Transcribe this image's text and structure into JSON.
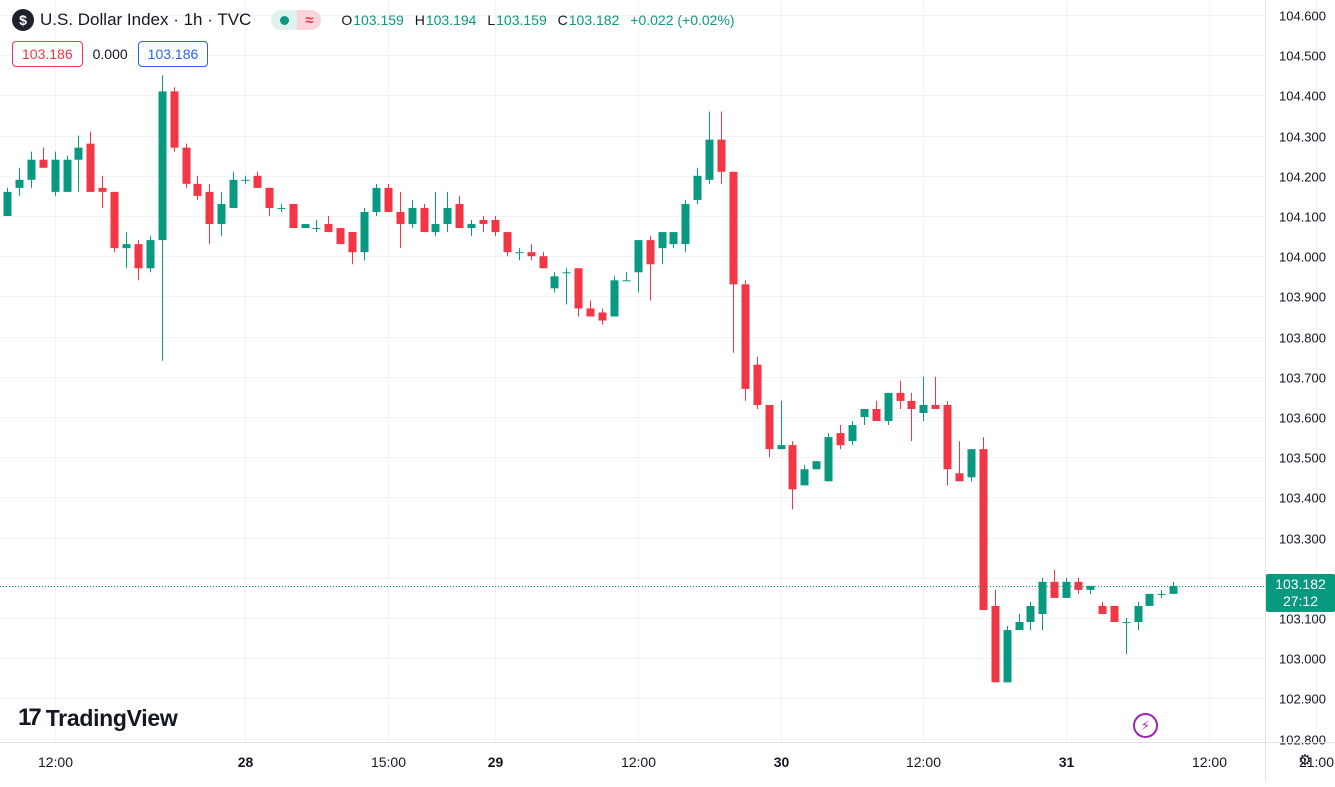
{
  "header": {
    "symbol_icon": "dollar-sign-icon",
    "symbol_glyph": "$",
    "title": "U.S. Dollar Index · 1h · TVC",
    "status_glyph": "≈",
    "ohlc": {
      "o": "103.159",
      "h": "103.194",
      "l": "103.159",
      "c": "103.182",
      "change": "+0.022 (+0.02%)"
    }
  },
  "quote": {
    "bid": "103.186",
    "spread": "0.000",
    "ask": "103.186"
  },
  "last_price": {
    "value": "103.182",
    "countdown": "27:12"
  },
  "logo_text": "TradingView",
  "logo_mark": "17",
  "colors": {
    "up": "#089981",
    "down": "#f23645",
    "grid": "#f0f3fa"
  },
  "chart_data": {
    "type": "candlestick",
    "ylim": [
      102.78,
      104.62
    ],
    "grid": true,
    "y_ticks": [
      "104.600",
      "104.500",
      "104.400",
      "104.300",
      "104.200",
      "104.100",
      "104.000",
      "103.900",
      "103.800",
      "103.700",
      "103.600",
      "103.500",
      "103.400",
      "103.300",
      "103.200",
      "103.100",
      "103.000",
      "102.900",
      "102.800"
    ],
    "y_tick_values": [
      104.6,
      104.5,
      104.4,
      104.3,
      104.2,
      104.1,
      104.0,
      103.9,
      103.8,
      103.7,
      103.6,
      103.5,
      103.4,
      103.3,
      103.2,
      103.1,
      103.0,
      102.9,
      102.8
    ],
    "x_ticks": [
      {
        "label": "12:00",
        "bar": 4,
        "bold": false
      },
      {
        "label": "28",
        "bar": 20,
        "bold": true
      },
      {
        "label": "15:00",
        "bar": 32,
        "bold": false
      },
      {
        "label": "29",
        "bar": 41,
        "bold": true
      },
      {
        "label": "12:00",
        "bar": 53,
        "bold": false
      },
      {
        "label": "30",
        "bar": 65,
        "bold": true
      },
      {
        "label": "12:00",
        "bar": 77,
        "bold": false
      },
      {
        "label": "31",
        "bar": 89,
        "bold": true
      },
      {
        "label": "12:00",
        "bar": 101,
        "bold": false
      },
      {
        "label": "21:00",
        "bar": 110,
        "bold": false
      }
    ],
    "candles": [
      {
        "o": 104.1,
        "h": 104.17,
        "l": 104.1,
        "c": 104.16
      },
      {
        "o": 104.17,
        "h": 104.22,
        "l": 104.15,
        "c": 104.19
      },
      {
        "o": 104.19,
        "h": 104.26,
        "l": 104.17,
        "c": 104.24
      },
      {
        "o": 104.24,
        "h": 104.27,
        "l": 104.22,
        "c": 104.22
      },
      {
        "o": 104.16,
        "h": 104.26,
        "l": 104.15,
        "c": 104.24
      },
      {
        "o": 104.16,
        "h": 104.25,
        "l": 104.16,
        "c": 104.24
      },
      {
        "o": 104.24,
        "h": 104.3,
        "l": 104.16,
        "c": 104.27
      },
      {
        "o": 104.28,
        "h": 104.31,
        "l": 104.16,
        "c": 104.16
      },
      {
        "o": 104.17,
        "h": 104.2,
        "l": 104.12,
        "c": 104.16
      },
      {
        "o": 104.16,
        "h": 104.16,
        "l": 104.01,
        "c": 104.02
      },
      {
        "o": 104.02,
        "h": 104.06,
        "l": 103.97,
        "c": 104.03
      },
      {
        "o": 104.03,
        "h": 104.04,
        "l": 103.94,
        "c": 103.97
      },
      {
        "o": 103.97,
        "h": 104.05,
        "l": 103.96,
        "c": 104.04
      },
      {
        "o": 104.04,
        "h": 104.45,
        "l": 103.74,
        "c": 104.41
      },
      {
        "o": 104.41,
        "h": 104.42,
        "l": 104.26,
        "c": 104.27
      },
      {
        "o": 104.27,
        "h": 104.28,
        "l": 104.17,
        "c": 104.18
      },
      {
        "o": 104.18,
        "h": 104.2,
        "l": 104.14,
        "c": 104.15
      },
      {
        "o": 104.16,
        "h": 104.18,
        "l": 104.03,
        "c": 104.08
      },
      {
        "o": 104.08,
        "h": 104.16,
        "l": 104.05,
        "c": 104.13
      },
      {
        "o": 104.12,
        "h": 104.21,
        "l": 104.12,
        "c": 104.19
      },
      {
        "o": 104.19,
        "h": 104.2,
        "l": 104.18,
        "c": 104.19
      },
      {
        "o": 104.2,
        "h": 104.21,
        "l": 104.17,
        "c": 104.17
      },
      {
        "o": 104.17,
        "h": 104.17,
        "l": 104.1,
        "c": 104.12
      },
      {
        "o": 104.12,
        "h": 104.13,
        "l": 104.11,
        "c": 104.12
      },
      {
        "o": 104.13,
        "h": 104.13,
        "l": 104.07,
        "c": 104.07
      },
      {
        "o": 104.07,
        "h": 104.08,
        "l": 104.07,
        "c": 104.08
      },
      {
        "o": 104.07,
        "h": 104.09,
        "l": 104.06,
        "c": 104.07
      },
      {
        "o": 104.08,
        "h": 104.1,
        "l": 104.06,
        "c": 104.06
      },
      {
        "o": 104.07,
        "h": 104.07,
        "l": 104.03,
        "c": 104.03
      },
      {
        "o": 104.06,
        "h": 104.06,
        "l": 103.98,
        "c": 104.01
      },
      {
        "o": 104.01,
        "h": 104.12,
        "l": 103.99,
        "c": 104.11
      },
      {
        "o": 104.11,
        "h": 104.18,
        "l": 104.1,
        "c": 104.17
      },
      {
        "o": 104.17,
        "h": 104.18,
        "l": 104.12,
        "c": 104.11
      },
      {
        "o": 104.11,
        "h": 104.16,
        "l": 104.02,
        "c": 104.08
      },
      {
        "o": 104.08,
        "h": 104.14,
        "l": 104.07,
        "c": 104.12
      },
      {
        "o": 104.12,
        "h": 104.13,
        "l": 104.06,
        "c": 104.06
      },
      {
        "o": 104.06,
        "h": 104.16,
        "l": 104.05,
        "c": 104.08
      },
      {
        "o": 104.08,
        "h": 104.16,
        "l": 104.06,
        "c": 104.12
      },
      {
        "o": 104.13,
        "h": 104.15,
        "l": 104.07,
        "c": 104.07
      },
      {
        "o": 104.07,
        "h": 104.09,
        "l": 104.05,
        "c": 104.08
      },
      {
        "o": 104.09,
        "h": 104.1,
        "l": 104.06,
        "c": 104.08
      },
      {
        "o": 104.09,
        "h": 104.1,
        "l": 104.05,
        "c": 104.06
      },
      {
        "o": 104.06,
        "h": 104.06,
        "l": 104.0,
        "c": 104.01
      },
      {
        "o": 104.01,
        "h": 104.02,
        "l": 103.99,
        "c": 104.01
      },
      {
        "o": 104.01,
        "h": 104.03,
        "l": 103.99,
        "c": 104.0
      },
      {
        "o": 104.0,
        "h": 104.01,
        "l": 103.97,
        "c": 103.97
      },
      {
        "o": 103.92,
        "h": 103.96,
        "l": 103.91,
        "c": 103.95
      },
      {
        "o": 103.96,
        "h": 103.97,
        "l": 103.88,
        "c": 103.96
      },
      {
        "o": 103.97,
        "h": 103.97,
        "l": 103.85,
        "c": 103.87
      },
      {
        "o": 103.87,
        "h": 103.89,
        "l": 103.85,
        "c": 103.85
      },
      {
        "o": 103.86,
        "h": 103.87,
        "l": 103.83,
        "c": 103.84
      },
      {
        "o": 103.85,
        "h": 103.95,
        "l": 103.85,
        "c": 103.94
      },
      {
        "o": 103.94,
        "h": 103.96,
        "l": 103.94,
        "c": 103.94
      },
      {
        "o": 103.96,
        "h": 104.04,
        "l": 103.91,
        "c": 104.04
      },
      {
        "o": 104.04,
        "h": 104.05,
        "l": 103.89,
        "c": 103.98
      },
      {
        "o": 104.02,
        "h": 104.06,
        "l": 103.98,
        "c": 104.06
      },
      {
        "o": 104.03,
        "h": 104.06,
        "l": 104.02,
        "c": 104.06
      },
      {
        "o": 104.03,
        "h": 104.14,
        "l": 104.01,
        "c": 104.13
      },
      {
        "o": 104.14,
        "h": 104.22,
        "l": 104.13,
        "c": 104.2
      },
      {
        "o": 104.19,
        "h": 104.36,
        "l": 104.18,
        "c": 104.29
      },
      {
        "o": 104.29,
        "h": 104.36,
        "l": 104.18,
        "c": 104.21
      },
      {
        "o": 104.21,
        "h": 104.21,
        "l": 103.76,
        "c": 103.93
      },
      {
        "o": 103.93,
        "h": 103.94,
        "l": 103.64,
        "c": 103.67
      },
      {
        "o": 103.73,
        "h": 103.75,
        "l": 103.62,
        "c": 103.63
      },
      {
        "o": 103.63,
        "h": 103.63,
        "l": 103.5,
        "c": 103.52
      },
      {
        "o": 103.52,
        "h": 103.64,
        "l": 103.52,
        "c": 103.53
      },
      {
        "o": 103.53,
        "h": 103.54,
        "l": 103.37,
        "c": 103.42
      },
      {
        "o": 103.43,
        "h": 103.48,
        "l": 103.43,
        "c": 103.47
      },
      {
        "o": 103.47,
        "h": 103.49,
        "l": 103.47,
        "c": 103.49
      },
      {
        "o": 103.44,
        "h": 103.56,
        "l": 103.44,
        "c": 103.55
      },
      {
        "o": 103.56,
        "h": 103.58,
        "l": 103.52,
        "c": 103.53
      },
      {
        "o": 103.54,
        "h": 103.59,
        "l": 103.53,
        "c": 103.58
      },
      {
        "o": 103.6,
        "h": 103.62,
        "l": 103.58,
        "c": 103.62
      },
      {
        "o": 103.62,
        "h": 103.64,
        "l": 103.59,
        "c": 103.59
      },
      {
        "o": 103.59,
        "h": 103.66,
        "l": 103.58,
        "c": 103.66
      },
      {
        "o": 103.66,
        "h": 103.69,
        "l": 103.62,
        "c": 103.64
      },
      {
        "o": 103.64,
        "h": 103.66,
        "l": 103.54,
        "c": 103.62
      },
      {
        "o": 103.61,
        "h": 103.7,
        "l": 103.59,
        "c": 103.63
      },
      {
        "o": 103.63,
        "h": 103.7,
        "l": 103.62,
        "c": 103.62
      },
      {
        "o": 103.63,
        "h": 103.64,
        "l": 103.43,
        "c": 103.47
      },
      {
        "o": 103.46,
        "h": 103.54,
        "l": 103.44,
        "c": 103.44
      },
      {
        "o": 103.45,
        "h": 103.52,
        "l": 103.44,
        "c": 103.52
      },
      {
        "o": 103.52,
        "h": 103.55,
        "l": 103.12,
        "c": 103.12
      },
      {
        "o": 103.13,
        "h": 103.17,
        "l": 102.94,
        "c": 102.94
      },
      {
        "o": 102.94,
        "h": 103.08,
        "l": 102.94,
        "c": 103.07
      },
      {
        "o": 103.07,
        "h": 103.11,
        "l": 103.07,
        "c": 103.09
      },
      {
        "o": 103.09,
        "h": 103.14,
        "l": 103.07,
        "c": 103.13
      },
      {
        "o": 103.11,
        "h": 103.2,
        "l": 103.07,
        "c": 103.19
      },
      {
        "o": 103.19,
        "h": 103.22,
        "l": 103.15,
        "c": 103.15
      },
      {
        "o": 103.15,
        "h": 103.2,
        "l": 103.15,
        "c": 103.19
      },
      {
        "o": 103.19,
        "h": 103.2,
        "l": 103.16,
        "c": 103.17
      },
      {
        "o": 103.17,
        "h": 103.18,
        "l": 103.16,
        "c": 103.18
      },
      {
        "o": 103.13,
        "h": 103.14,
        "l": 103.11,
        "c": 103.11
      },
      {
        "o": 103.13,
        "h": 103.13,
        "l": 103.09,
        "c": 103.09
      },
      {
        "o": 103.09,
        "h": 103.1,
        "l": 103.01,
        "c": 103.09
      },
      {
        "o": 103.09,
        "h": 103.14,
        "l": 103.07,
        "c": 103.13
      },
      {
        "o": 103.13,
        "h": 103.16,
        "l": 103.13,
        "c": 103.16
      },
      {
        "o": 103.16,
        "h": 103.17,
        "l": 103.15,
        "c": 103.16
      },
      {
        "o": 103.16,
        "h": 103.19,
        "l": 103.16,
        "c": 103.18
      }
    ]
  }
}
